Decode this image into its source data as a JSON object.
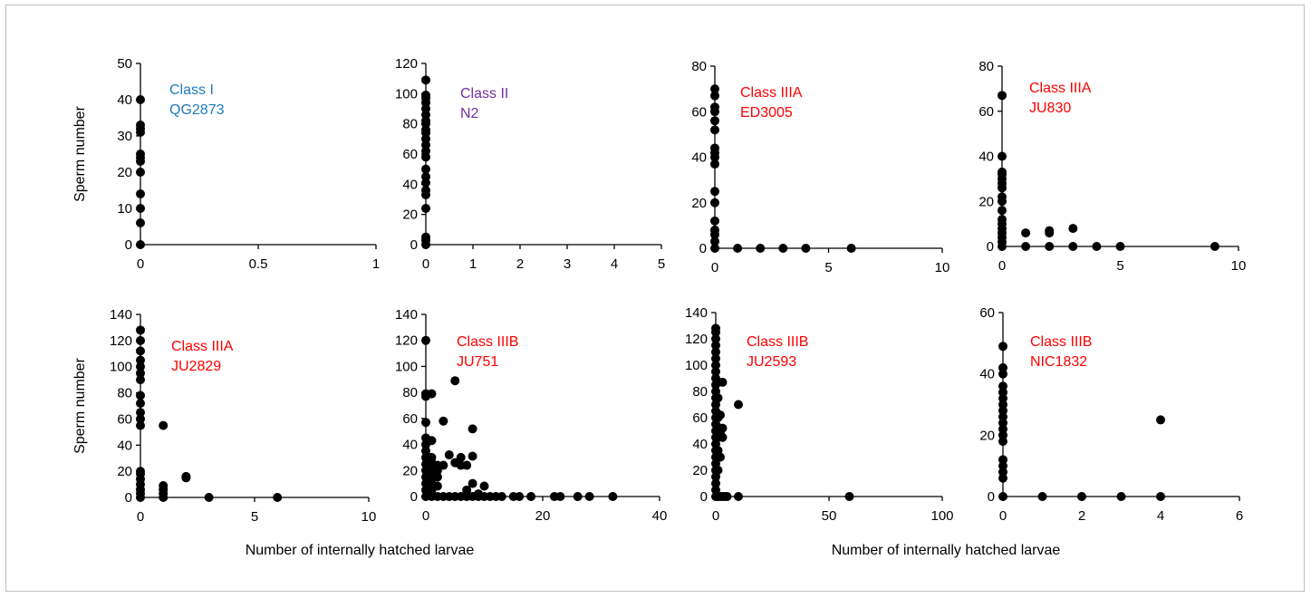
{
  "colors": {
    "class_I": "#1f7ab8",
    "class_II": "#7030a0",
    "class_III": "#ff0000",
    "axis": "#000000",
    "marker": "#000000"
  },
  "shared_labels": {
    "ylabel": "Sperm number",
    "xlabel": "Number of internally hatched larvae"
  },
  "chart_data": [
    {
      "type": "scatter",
      "annotation": [
        "Class I",
        "QG2873"
      ],
      "annotation_color": "class_I",
      "xlim": [
        0,
        1
      ],
      "xticks": [
        0,
        0.5,
        1
      ],
      "xtick_labels": [
        "0",
        "0.5",
        "1"
      ],
      "ylim": [
        0,
        50
      ],
      "yticks": [
        0,
        10,
        20,
        30,
        40,
        50
      ],
      "ytick_labels": [
        "0",
        "10",
        "20",
        "30",
        "40",
        "50"
      ],
      "ylabel": "Sperm number",
      "xlabel": "",
      "points": [
        [
          0,
          0
        ],
        [
          0,
          6
        ],
        [
          0,
          10
        ],
        [
          0,
          14
        ],
        [
          0,
          20
        ],
        [
          0,
          23
        ],
        [
          0,
          24
        ],
        [
          0,
          25
        ],
        [
          0,
          31
        ],
        [
          0,
          32
        ],
        [
          0,
          33
        ],
        [
          0,
          40
        ]
      ]
    },
    {
      "type": "scatter",
      "annotation": [
        "Class II",
        "N2"
      ],
      "annotation_color": "class_II",
      "xlim": [
        0,
        5
      ],
      "xticks": [
        0,
        1,
        2,
        3,
        4,
        5
      ],
      "xtick_labels": [
        "0",
        "1",
        "2",
        "3",
        "4",
        "5"
      ],
      "ylim": [
        0,
        120
      ],
      "yticks": [
        0,
        20,
        40,
        60,
        80,
        100,
        120
      ],
      "ytick_labels": [
        "0",
        "20",
        "40",
        "60",
        "80",
        "100",
        "120"
      ],
      "ylabel": "",
      "xlabel": "",
      "points": [
        [
          0,
          0
        ],
        [
          0,
          3
        ],
        [
          0,
          5
        ],
        [
          0,
          24
        ],
        [
          0,
          33
        ],
        [
          0,
          36
        ],
        [
          0,
          41
        ],
        [
          0,
          45
        ],
        [
          0,
          50
        ],
        [
          0,
          58
        ],
        [
          0,
          62
        ],
        [
          0,
          66
        ],
        [
          0,
          70
        ],
        [
          0,
          74
        ],
        [
          0,
          76
        ],
        [
          0,
          80
        ],
        [
          0,
          82
        ],
        [
          0,
          86
        ],
        [
          0,
          90
        ],
        [
          0,
          94
        ],
        [
          0,
          97
        ],
        [
          0,
          99
        ],
        [
          0,
          109
        ]
      ]
    },
    {
      "type": "scatter",
      "annotation": [
        "Class IIIA",
        "ED3005"
      ],
      "annotation_color": "class_III",
      "xlim": [
        0,
        10
      ],
      "xticks": [
        0,
        5,
        10
      ],
      "xtick_labels": [
        "0",
        "5",
        "10"
      ],
      "ylim": [
        0,
        80
      ],
      "yticks": [
        0,
        20,
        40,
        60,
        80
      ],
      "ytick_labels": [
        "0",
        "20",
        "40",
        "60",
        "80"
      ],
      "ylabel": "",
      "xlabel": "",
      "points": [
        [
          0,
          0
        ],
        [
          0,
          3
        ],
        [
          0,
          6
        ],
        [
          0,
          8
        ],
        [
          0,
          12
        ],
        [
          0,
          20
        ],
        [
          0,
          25
        ],
        [
          0,
          37
        ],
        [
          0,
          40
        ],
        [
          0,
          42
        ],
        [
          0,
          44
        ],
        [
          0,
          52
        ],
        [
          0,
          56
        ],
        [
          0,
          60
        ],
        [
          0,
          62
        ],
        [
          0,
          67
        ],
        [
          0,
          70
        ],
        [
          1,
          0
        ],
        [
          2,
          0
        ],
        [
          3,
          0
        ],
        [
          4,
          0
        ],
        [
          6,
          0
        ]
      ]
    },
    {
      "type": "scatter",
      "annotation": [
        "Class IIIA",
        "JU830"
      ],
      "annotation_color": "class_III",
      "xlim": [
        0,
        10
      ],
      "xticks": [
        0,
        5,
        10
      ],
      "xtick_labels": [
        "0",
        "5",
        "10"
      ],
      "ylim": [
        0,
        80
      ],
      "yticks": [
        0,
        20,
        40,
        60,
        80
      ],
      "ytick_labels": [
        "0",
        "20",
        "40",
        "60",
        "80"
      ],
      "ylabel": "",
      "xlabel": "",
      "points": [
        [
          0,
          0
        ],
        [
          0,
          2
        ],
        [
          0,
          4
        ],
        [
          0,
          6
        ],
        [
          0,
          8
        ],
        [
          0,
          10
        ],
        [
          0,
          12
        ],
        [
          0,
          16
        ],
        [
          0,
          20
        ],
        [
          0,
          22
        ],
        [
          0,
          26
        ],
        [
          0,
          28
        ],
        [
          0,
          30
        ],
        [
          0,
          32
        ],
        [
          0,
          33
        ],
        [
          0,
          40
        ],
        [
          0,
          67
        ],
        [
          1,
          0
        ],
        [
          1,
          6
        ],
        [
          2,
          0
        ],
        [
          2,
          6
        ],
        [
          2,
          7
        ],
        [
          3,
          0
        ],
        [
          3,
          8
        ],
        [
          4,
          0
        ],
        [
          5,
          0
        ],
        [
          9,
          0
        ]
      ]
    },
    {
      "type": "scatter",
      "annotation": [
        "Class IIIA",
        "JU2829"
      ],
      "annotation_color": "class_III",
      "xlim": [
        0,
        10
      ],
      "xticks": [
        0,
        5,
        10
      ],
      "xtick_labels": [
        "0",
        "5",
        "10"
      ],
      "ylim": [
        0,
        140
      ],
      "yticks": [
        0,
        20,
        40,
        60,
        80,
        100,
        120,
        140
      ],
      "ytick_labels": [
        "0",
        "20",
        "40",
        "60",
        "80",
        "100",
        "120",
        "140"
      ],
      "ylabel": "Sperm number",
      "xlabel": "",
      "points": [
        [
          0,
          0
        ],
        [
          0,
          3
        ],
        [
          0,
          6
        ],
        [
          0,
          10
        ],
        [
          0,
          14
        ],
        [
          0,
          18
        ],
        [
          0,
          20
        ],
        [
          0,
          55
        ],
        [
          0,
          60
        ],
        [
          0,
          65
        ],
        [
          0,
          72
        ],
        [
          0,
          78
        ],
        [
          0,
          90
        ],
        [
          0,
          95
        ],
        [
          0,
          100
        ],
        [
          0,
          105
        ],
        [
          0,
          112
        ],
        [
          0,
          120
        ],
        [
          0,
          128
        ],
        [
          1,
          0
        ],
        [
          1,
          3
        ],
        [
          1,
          6
        ],
        [
          1,
          9
        ],
        [
          1,
          55
        ],
        [
          2,
          15
        ],
        [
          2,
          16
        ],
        [
          3,
          0
        ],
        [
          6,
          0
        ]
      ]
    },
    {
      "type": "scatter",
      "annotation": [
        "Class IIIB",
        "JU751"
      ],
      "annotation_color": "class_III",
      "xlim": [
        0,
        40
      ],
      "xticks": [
        0,
        20,
        40
      ],
      "xtick_labels": [
        "0",
        "20",
        "40"
      ],
      "ylim": [
        0,
        140
      ],
      "yticks": [
        0,
        20,
        40,
        60,
        80,
        100,
        120,
        140
      ],
      "ytick_labels": [
        "0",
        "20",
        "40",
        "60",
        "80",
        "100",
        "120",
        "140"
      ],
      "ylabel": "",
      "xlabel": "",
      "points": [
        [
          0,
          0
        ],
        [
          0,
          5
        ],
        [
          0,
          10
        ],
        [
          0,
          15
        ],
        [
          0,
          20
        ],
        [
          0,
          25
        ],
        [
          0,
          30
        ],
        [
          0,
          35
        ],
        [
          0,
          40
        ],
        [
          0,
          45
        ],
        [
          0,
          57
        ],
        [
          0,
          77
        ],
        [
          0,
          79
        ],
        [
          0,
          120
        ],
        [
          1,
          0
        ],
        [
          1,
          5
        ],
        [
          1,
          10
        ],
        [
          1,
          15
        ],
        [
          1,
          20
        ],
        [
          1,
          26
        ],
        [
          1,
          30
        ],
        [
          1,
          43
        ],
        [
          1,
          79
        ],
        [
          2,
          0
        ],
        [
          2,
          8
        ],
        [
          2,
          15
        ],
        [
          2,
          20
        ],
        [
          2,
          24
        ],
        [
          3,
          0
        ],
        [
          3,
          24
        ],
        [
          3,
          58
        ],
        [
          4,
          0
        ],
        [
          4,
          32
        ],
        [
          5,
          0
        ],
        [
          5,
          26
        ],
        [
          5,
          89
        ],
        [
          6,
          0
        ],
        [
          6,
          24
        ],
        [
          6,
          30
        ],
        [
          7,
          0
        ],
        [
          7,
          5
        ],
        [
          7,
          24
        ],
        [
          8,
          0
        ],
        [
          8,
          10
        ],
        [
          8,
          31
        ],
        [
          8,
          52
        ],
        [
          9,
          0
        ],
        [
          9,
          2
        ],
        [
          10,
          0
        ],
        [
          10,
          8
        ],
        [
          11,
          0
        ],
        [
          12,
          0
        ],
        [
          13,
          0
        ],
        [
          15,
          0
        ],
        [
          16,
          0
        ],
        [
          18,
          0
        ],
        [
          22,
          0
        ],
        [
          23,
          0
        ],
        [
          26,
          0
        ],
        [
          28,
          0
        ],
        [
          32,
          0
        ]
      ]
    },
    {
      "type": "scatter",
      "annotation": [
        "Class IIIB",
        "JU2593"
      ],
      "annotation_color": "class_III",
      "xlim": [
        0,
        100
      ],
      "xticks": [
        0,
        50,
        100
      ],
      "xtick_labels": [
        "0",
        "50",
        "100"
      ],
      "ylim": [
        0,
        140
      ],
      "yticks": [
        0,
        20,
        40,
        60,
        80,
        100,
        120,
        140
      ],
      "ytick_labels": [
        "0",
        "20",
        "40",
        "60",
        "80",
        "100",
        "120",
        "140"
      ],
      "ylabel": "",
      "xlabel": "",
      "points": [
        [
          0,
          0
        ],
        [
          0,
          5
        ],
        [
          0,
          10
        ],
        [
          0,
          15
        ],
        [
          0,
          20
        ],
        [
          0,
          25
        ],
        [
          0,
          30
        ],
        [
          0,
          35
        ],
        [
          0,
          40
        ],
        [
          0,
          45
        ],
        [
          0,
          50
        ],
        [
          0,
          55
        ],
        [
          0,
          60
        ],
        [
          0,
          65
        ],
        [
          0,
          70
        ],
        [
          0,
          75
        ],
        [
          0,
          80
        ],
        [
          0,
          85
        ],
        [
          0,
          90
        ],
        [
          0,
          95
        ],
        [
          0,
          100
        ],
        [
          0,
          105
        ],
        [
          0,
          110
        ],
        [
          0,
          115
        ],
        [
          0,
          120
        ],
        [
          0,
          125
        ],
        [
          0,
          128
        ],
        [
          1,
          0
        ],
        [
          1,
          20
        ],
        [
          1,
          35
        ],
        [
          1,
          45
        ],
        [
          1,
          60
        ],
        [
          1,
          75
        ],
        [
          2,
          0
        ],
        [
          2,
          30
        ],
        [
          2,
          48
        ],
        [
          2,
          52
        ],
        [
          2,
          62
        ],
        [
          3,
          0
        ],
        [
          3,
          45
        ],
        [
          3,
          52
        ],
        [
          3,
          87
        ],
        [
          4,
          0
        ],
        [
          5,
          0
        ],
        [
          10,
          0
        ],
        [
          10,
          70
        ],
        [
          59,
          0
        ]
      ]
    },
    {
      "type": "scatter",
      "annotation": [
        "Class IIIB",
        "NIC1832"
      ],
      "annotation_color": "class_III",
      "xlim": [
        0,
        6
      ],
      "xticks": [
        0,
        2,
        4,
        6
      ],
      "xtick_labels": [
        "0",
        "2",
        "4",
        "6"
      ],
      "ylim": [
        0,
        60
      ],
      "yticks": [
        0,
        20,
        40,
        60
      ],
      "ytick_labels": [
        "0",
        "20",
        "40",
        "60"
      ],
      "ylabel": "",
      "xlabel": "",
      "points": [
        [
          0,
          0
        ],
        [
          0,
          6
        ],
        [
          0,
          8
        ],
        [
          0,
          10
        ],
        [
          0,
          12
        ],
        [
          0,
          18
        ],
        [
          0,
          20
        ],
        [
          0,
          22
        ],
        [
          0,
          24
        ],
        [
          0,
          26
        ],
        [
          0,
          28
        ],
        [
          0,
          30
        ],
        [
          0,
          32
        ],
        [
          0,
          34
        ],
        [
          0,
          36
        ],
        [
          0,
          40
        ],
        [
          0,
          42
        ],
        [
          0,
          49
        ],
        [
          1,
          0
        ],
        [
          2,
          0
        ],
        [
          3,
          0
        ],
        [
          4,
          0
        ],
        [
          4,
          25
        ]
      ]
    }
  ]
}
